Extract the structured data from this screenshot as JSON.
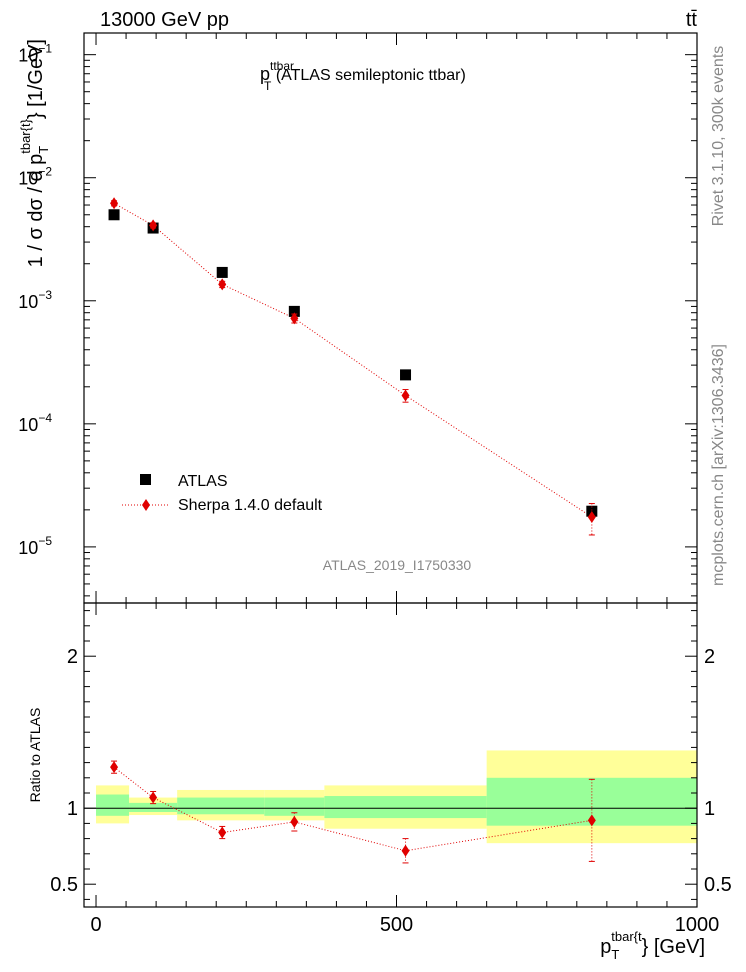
{
  "header": {
    "energy": "13000 GeV pp",
    "process": "tt̄"
  },
  "side_labels": {
    "rivet": "Rivet 3.1.10,  300k events",
    "mcplots": "mcplots.cern.ch [arXiv:1306.3436]"
  },
  "chart_data": [
    {
      "type": "scatter",
      "panel": "main",
      "title_main": "p",
      "title_sup": "ttbar",
      "title_sub": "T",
      "title_rest": " (ATLAS semileptonic ttbar)",
      "analysis_id": "ATLAS_2019_I1750330",
      "ylabel": "1 / σ dσ / d p_T^{tbar{t}} [1/GeV]",
      "ylabel_parts": {
        "pre": "1 / σ dσ / d p",
        "sub": "T",
        "sup": "tbar{t}",
        "post": "} [1/GeV]"
      },
      "yscale": "log",
      "ylim": [
        3.5e-06,
        0.15
      ],
      "y_ticks": [
        {
          "value": 1e-05,
          "base": "10",
          "exp": "−5"
        },
        {
          "value": 0.0001,
          "base": "10",
          "exp": "−4"
        },
        {
          "value": 0.001,
          "base": "10",
          "exp": "−3"
        },
        {
          "value": 0.01,
          "base": "10",
          "exp": "−2"
        },
        {
          "value": 0.1,
          "base": "10",
          "exp": "−1"
        }
      ],
      "xlim": [
        -20,
        1000
      ],
      "legend_position": "bottom-left",
      "series": [
        {
          "name": "ATLAS",
          "marker": "square",
          "color": "#000000",
          "x": [
            30,
            95,
            210,
            330,
            515,
            825
          ],
          "xerr": [
            [
              30,
              30
            ],
            [
              35,
              35
            ],
            [
              70,
              70
            ],
            [
              50,
              50
            ],
            [
              135,
              135
            ],
            [
              175,
              175
            ]
          ],
          "y": [
            0.005,
            0.0039,
            0.0017,
            0.00082,
            0.00025,
            1.95e-05
          ],
          "yerr": [
            0.0001,
            8e-05,
            4e-05,
            2e-05,
            7e-06,
            2e-06
          ]
        },
        {
          "name": "Sherpa 1.4.0 default",
          "marker": "diamond",
          "color": "#e00000",
          "x": [
            30,
            95,
            210,
            330,
            515,
            825
          ],
          "y": [
            0.0062,
            0.0041,
            0.00136,
            0.00072,
            0.00017,
            1.75e-05
          ],
          "yerr": [
            0.0003,
            0.0002,
            8e-05,
            6e-05,
            2e-05,
            5e-06
          ]
        }
      ]
    },
    {
      "type": "scatter",
      "panel": "ratio",
      "ylabel": "Ratio to ATLAS",
      "ylim": [
        0.35,
        2.35
      ],
      "y_ticks": [
        {
          "value": 0.5,
          "label": "0.5"
        },
        {
          "value": 1,
          "label": "1"
        },
        {
          "value": 2,
          "label": "2"
        }
      ],
      "xlim": [
        -20,
        1000
      ],
      "x_ticks": [
        {
          "value": 0,
          "label": "0"
        },
        {
          "value": 500,
          "label": "500"
        },
        {
          "value": 1000,
          "label": "1000"
        }
      ],
      "xlabel_parts": {
        "pre": "p",
        "sub": "T",
        "sup": "tbar{t",
        "post": "} [GeV]"
      },
      "bands": [
        {
          "x0": 0,
          "x1": 55,
          "yellow": [
            0.9,
            1.15
          ],
          "green": [
            0.95,
            1.09
          ]
        },
        {
          "x0": 55,
          "x1": 135,
          "yellow": [
            0.955,
            1.07
          ],
          "green": [
            0.975,
            1.035
          ]
        },
        {
          "x0": 135,
          "x1": 280,
          "yellow": [
            0.92,
            1.12
          ],
          "green": [
            0.96,
            1.07
          ]
        },
        {
          "x0": 280,
          "x1": 380,
          "yellow": [
            0.92,
            1.12
          ],
          "green": [
            0.95,
            1.07
          ]
        },
        {
          "x0": 380,
          "x1": 650,
          "yellow": [
            0.865,
            1.15
          ],
          "green": [
            0.935,
            1.08
          ]
        },
        {
          "x0": 650,
          "x1": 1000,
          "yellow": [
            0.77,
            1.38
          ],
          "green": [
            0.885,
            1.2
          ]
        }
      ],
      "series": [
        {
          "name": "Sherpa 1.4.0 default",
          "x": [
            30,
            95,
            210,
            330,
            515,
            825
          ],
          "y": [
            1.27,
            1.07,
            0.84,
            0.91,
            0.72,
            0.92
          ],
          "yerr": [
            0.04,
            0.04,
            0.04,
            0.06,
            0.08,
            0.27
          ]
        }
      ]
    }
  ]
}
